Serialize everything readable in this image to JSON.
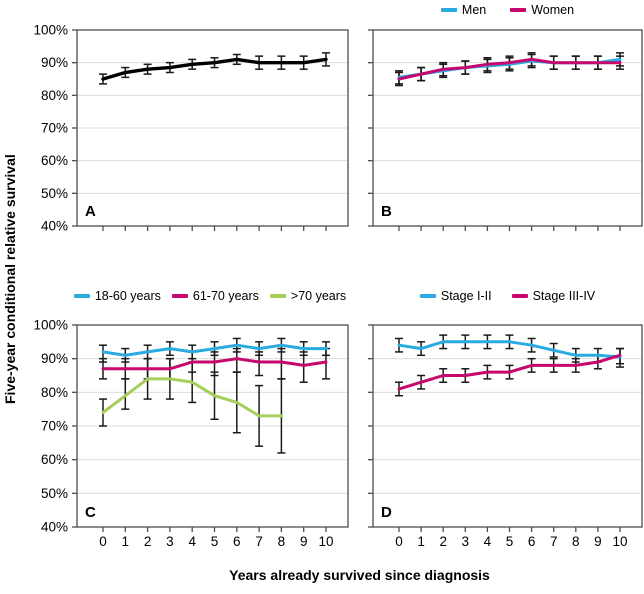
{
  "figure": {
    "y_axis_label": "Five-year conditional relative survival",
    "x_axis_label": "Years already survived since diagnosis"
  },
  "colors": {
    "frame": "#4D4D4D",
    "grid": "#DCDCDC",
    "error_bar": "#1A1A1A",
    "cyan": "#29ABE2",
    "magenta": "#C5076E",
    "green": "#A6CE5A",
    "black": "#000000"
  },
  "chart_data": [
    {
      "label": "A",
      "type": "line",
      "x": [
        0,
        1,
        2,
        3,
        4,
        5,
        6,
        7,
        8,
        9,
        10
      ],
      "ylim": [
        40,
        100
      ],
      "yticks": [
        100,
        90,
        80,
        70,
        60,
        50,
        40
      ],
      "ytick_suffix": "%",
      "show_ytick_labels": true,
      "show_xtick_labels": false,
      "series": [
        {
          "color": "#000000",
          "width": 3.4,
          "values": [
            85,
            87,
            88,
            88.5,
            89.5,
            90,
            91,
            90,
            90,
            90,
            91
          ],
          "ci_low": [
            83.5,
            85.5,
            86.5,
            87,
            88,
            88.5,
            89.5,
            88,
            88,
            88,
            89
          ],
          "ci_high": [
            86.5,
            88.5,
            89.5,
            90,
            91,
            91.5,
            92.5,
            92,
            92,
            92,
            93
          ]
        }
      ]
    },
    {
      "label": "B",
      "type": "line",
      "x": [
        0,
        1,
        2,
        3,
        4,
        5,
        6,
        7,
        8,
        9,
        10
      ],
      "ylim": [
        40,
        100
      ],
      "yticks": [
        100,
        90,
        80,
        70,
        60,
        50,
        40
      ],
      "ytick_suffix": "%",
      "show_ytick_labels": false,
      "show_xtick_labels": false,
      "series": [
        {
          "name": "Men",
          "color": "#29ABE2",
          "width": 3,
          "values": [
            85.5,
            86.5,
            87.5,
            88.5,
            89,
            89.5,
            90.5,
            90,
            90,
            90,
            91
          ],
          "ci_low": [
            83.5,
            84.5,
            85.5,
            86.5,
            87,
            87.5,
            88.5,
            88,
            88,
            88,
            89
          ],
          "ci_high": [
            87.5,
            88.5,
            89.5,
            90.5,
            91,
            91.5,
            92.5,
            92,
            92,
            92,
            93
          ]
        },
        {
          "name": "Women",
          "color": "#C5076E",
          "width": 3,
          "values": [
            85,
            86.5,
            88,
            88.5,
            89.5,
            90,
            91,
            90,
            90,
            90,
            90
          ],
          "ci_low": [
            83,
            84.5,
            86,
            86.5,
            87.5,
            88,
            89,
            88,
            88,
            88,
            88
          ],
          "ci_high": [
            87,
            88.5,
            90,
            90.5,
            91.5,
            92,
            93,
            92,
            92,
            92,
            92
          ]
        }
      ]
    },
    {
      "label": "C",
      "type": "line",
      "x": [
        0,
        1,
        2,
        3,
        4,
        5,
        6,
        7,
        8,
        9,
        10
      ],
      "ylim": [
        40,
        100
      ],
      "yticks": [
        100,
        90,
        80,
        70,
        60,
        50,
        40
      ],
      "ytick_suffix": "%",
      "show_ytick_labels": true,
      "show_xtick_labels": true,
      "series": [
        {
          "name": "18-60 years",
          "color": "#29ABE2",
          "width": 3,
          "values": [
            92,
            91,
            92,
            93,
            92,
            93,
            94,
            93,
            94,
            93,
            93
          ],
          "ci_low": [
            89,
            89,
            90,
            91,
            90,
            91,
            92,
            91,
            92,
            91,
            91
          ],
          "ci_high": [
            94,
            93,
            94,
            95,
            94,
            95,
            96,
            95,
            96,
            95,
            95
          ]
        },
        {
          "name": "61-70 years",
          "color": "#C5076E",
          "width": 3,
          "values": [
            87,
            87,
            87,
            87,
            89,
            89,
            90,
            89,
            89,
            88,
            89
          ],
          "ci_low": [
            84,
            84,
            84,
            84,
            86,
            85,
            86,
            85,
            84,
            83,
            84
          ],
          "ci_high": [
            90,
            90,
            90,
            90,
            92,
            92,
            93,
            92,
            93,
            92,
            93
          ]
        },
        {
          "name": ">70 years",
          "color": "#A6CE5A",
          "width": 3,
          "values": [
            74,
            79,
            84,
            84,
            83,
            79,
            77,
            73,
            73,
            null,
            null
          ],
          "ci_low": [
            70,
            75,
            78,
            78,
            77,
            72,
            68,
            64,
            62,
            null,
            null
          ],
          "ci_high": [
            78,
            84,
            90,
            90,
            89,
            86,
            86,
            82,
            84,
            null,
            null
          ]
        }
      ]
    },
    {
      "label": "D",
      "type": "line",
      "x": [
        0,
        1,
        2,
        3,
        4,
        5,
        6,
        7,
        8,
        9,
        10
      ],
      "ylim": [
        40,
        100
      ],
      "yticks": [
        100,
        90,
        80,
        70,
        60,
        50,
        40
      ],
      "ytick_suffix": "%",
      "show_ytick_labels": false,
      "show_xtick_labels": true,
      "series": [
        {
          "name": "Stage I-II",
          "color": "#29ABE2",
          "width": 3,
          "values": [
            94,
            93,
            95,
            95,
            95,
            95,
            94,
            92.5,
            91,
            91,
            90.5
          ],
          "ci_low": [
            92,
            91,
            93,
            93,
            93,
            93,
            92,
            90.5,
            89,
            89,
            87.5
          ],
          "ci_high": [
            96,
            95,
            97,
            97,
            97,
            97,
            96,
            94.5,
            93,
            93,
            93
          ]
        },
        {
          "name": "Stage III-IV",
          "color": "#C5076E",
          "width": 3,
          "values": [
            81,
            83,
            85,
            85,
            86,
            86,
            88,
            88,
            88,
            89,
            91
          ],
          "ci_low": [
            79,
            81,
            83,
            83,
            84,
            84,
            86,
            86,
            86,
            87,
            88.5
          ],
          "ci_high": [
            83,
            85,
            87,
            87,
            88,
            88,
            90,
            90,
            90,
            91,
            93
          ]
        }
      ]
    }
  ]
}
